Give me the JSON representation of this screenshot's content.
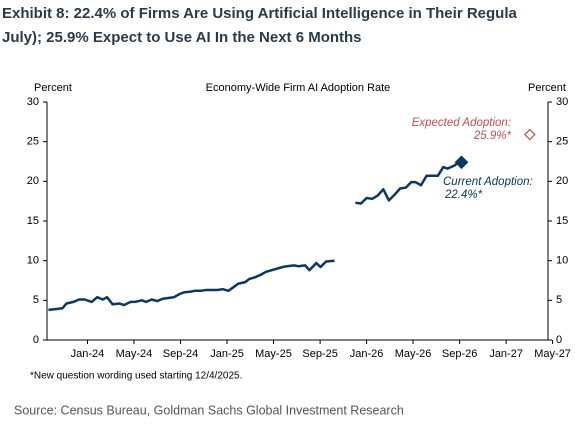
{
  "chart_data": {
    "type": "line",
    "title_lines": [
      "Exhibit 8: 22.4% of Firms Are Using Artificial Intelligence in Their Regula",
      "July); 25.9% Expect to Use AI In the Next 6 Months"
    ],
    "chart_title": "Economy-Wide Firm AI Adoption Rate",
    "y_label": "Percent",
    "y2_label": "Percent",
    "ylim": [
      0,
      30
    ],
    "yticks": [
      0,
      5,
      10,
      15,
      20,
      25,
      30
    ],
    "y2lim": [
      0,
      30
    ],
    "y2ticks": [
      0,
      5,
      10,
      15,
      20,
      25,
      30
    ],
    "xlim": [
      2023.71,
      2027.3
    ],
    "xticks": [
      {
        "value": 2024,
        "label": "Jan-24"
      },
      {
        "value": 2024.333,
        "label": "May-24"
      },
      {
        "value": 2024.667,
        "label": "Sep-24"
      },
      {
        "value": 2025,
        "label": "Jan-25"
      },
      {
        "value": 2025.333,
        "label": "May-25"
      },
      {
        "value": 2025.667,
        "label": "Sep-25"
      },
      {
        "value": 2026,
        "label": "Jan-26"
      },
      {
        "value": 2026.333,
        "label": "May-26"
      },
      {
        "value": 2026.667,
        "label": "Sep-26"
      },
      {
        "value": 2027,
        "label": "Jan-27"
      },
      {
        "value": 2027.333,
        "label": "May-27"
      }
    ],
    "series": [
      {
        "color": "#0b3863",
        "x": [
          2023.72,
          2023.77,
          2023.82,
          2023.85,
          2023.9,
          2023.94,
          2023.98,
          2024.03,
          2024.07,
          2024.11,
          2024.14,
          2024.18,
          2024.23,
          2024.26,
          2024.31,
          2024.34,
          2024.39,
          2024.42,
          2024.46,
          2024.5,
          2024.54,
          2024.58,
          2024.62,
          2024.66,
          2024.69,
          2024.74,
          2024.77,
          2024.81,
          2024.85,
          2024.89,
          2024.93,
          2024.97,
          2025.01,
          2025.05,
          2025.08,
          2025.13,
          2025.16,
          2025.2,
          2025.24,
          2025.28,
          2025.32,
          2025.36,
          2025.4,
          2025.43,
          2025.48,
          2025.51,
          2025.56,
          2025.59,
          2025.64,
          2025.67,
          2025.71,
          2025.77
        ],
        "values": [
          3.8,
          3.9,
          4.0,
          4.6,
          4.8,
          5.1,
          5.1,
          4.8,
          5.4,
          5.1,
          5.4,
          4.5,
          4.6,
          4.4,
          4.8,
          4.8,
          5.0,
          4.8,
          5.1,
          4.9,
          5.2,
          5.3,
          5.4,
          5.8,
          6.0,
          6.1,
          6.2,
          6.2,
          6.3,
          6.3,
          6.3,
          6.4,
          6.2,
          6.7,
          7.1,
          7.3,
          7.7,
          7.9,
          8.2,
          8.6,
          8.8,
          9.0,
          9.2,
          9.3,
          9.4,
          9.3,
          9.4,
          8.8,
          9.7,
          9.2,
          9.9,
          10.0
        ]
      },
      {
        "color": "#0b3863",
        "x": [
          2025.92,
          2025.96,
          2026.0,
          2026.04,
          2026.08,
          2026.12,
          2026.16,
          2026.2,
          2026.24,
          2026.28,
          2026.32,
          2026.35,
          2026.39,
          2026.43,
          2026.47,
          2026.51,
          2026.55,
          2026.58,
          2026.63,
          2026.66
        ],
        "values": [
          17.3,
          17.2,
          17.9,
          17.8,
          18.2,
          19.0,
          17.6,
          18.3,
          19.1,
          19.2,
          19.9,
          19.9,
          19.5,
          20.7,
          20.7,
          20.7,
          21.8,
          21.6,
          22.0,
          22.4
        ]
      }
    ],
    "current": {
      "x": 2026.68,
      "value": 22.4,
      "color": "#0b3863"
    },
    "current_label": [
      "Current Adoption:",
      "22.4%*"
    ],
    "expected": {
      "x": 2027.17,
      "value": 25.9,
      "color": "#c0504d"
    },
    "expected_label": [
      "Expected Adoption:",
      "25.9%*"
    ],
    "footnote": "*New question wording used starting 12/4/2025.",
    "source": "Source: Census Bureau, Goldman Sachs Global Investment Research"
  }
}
